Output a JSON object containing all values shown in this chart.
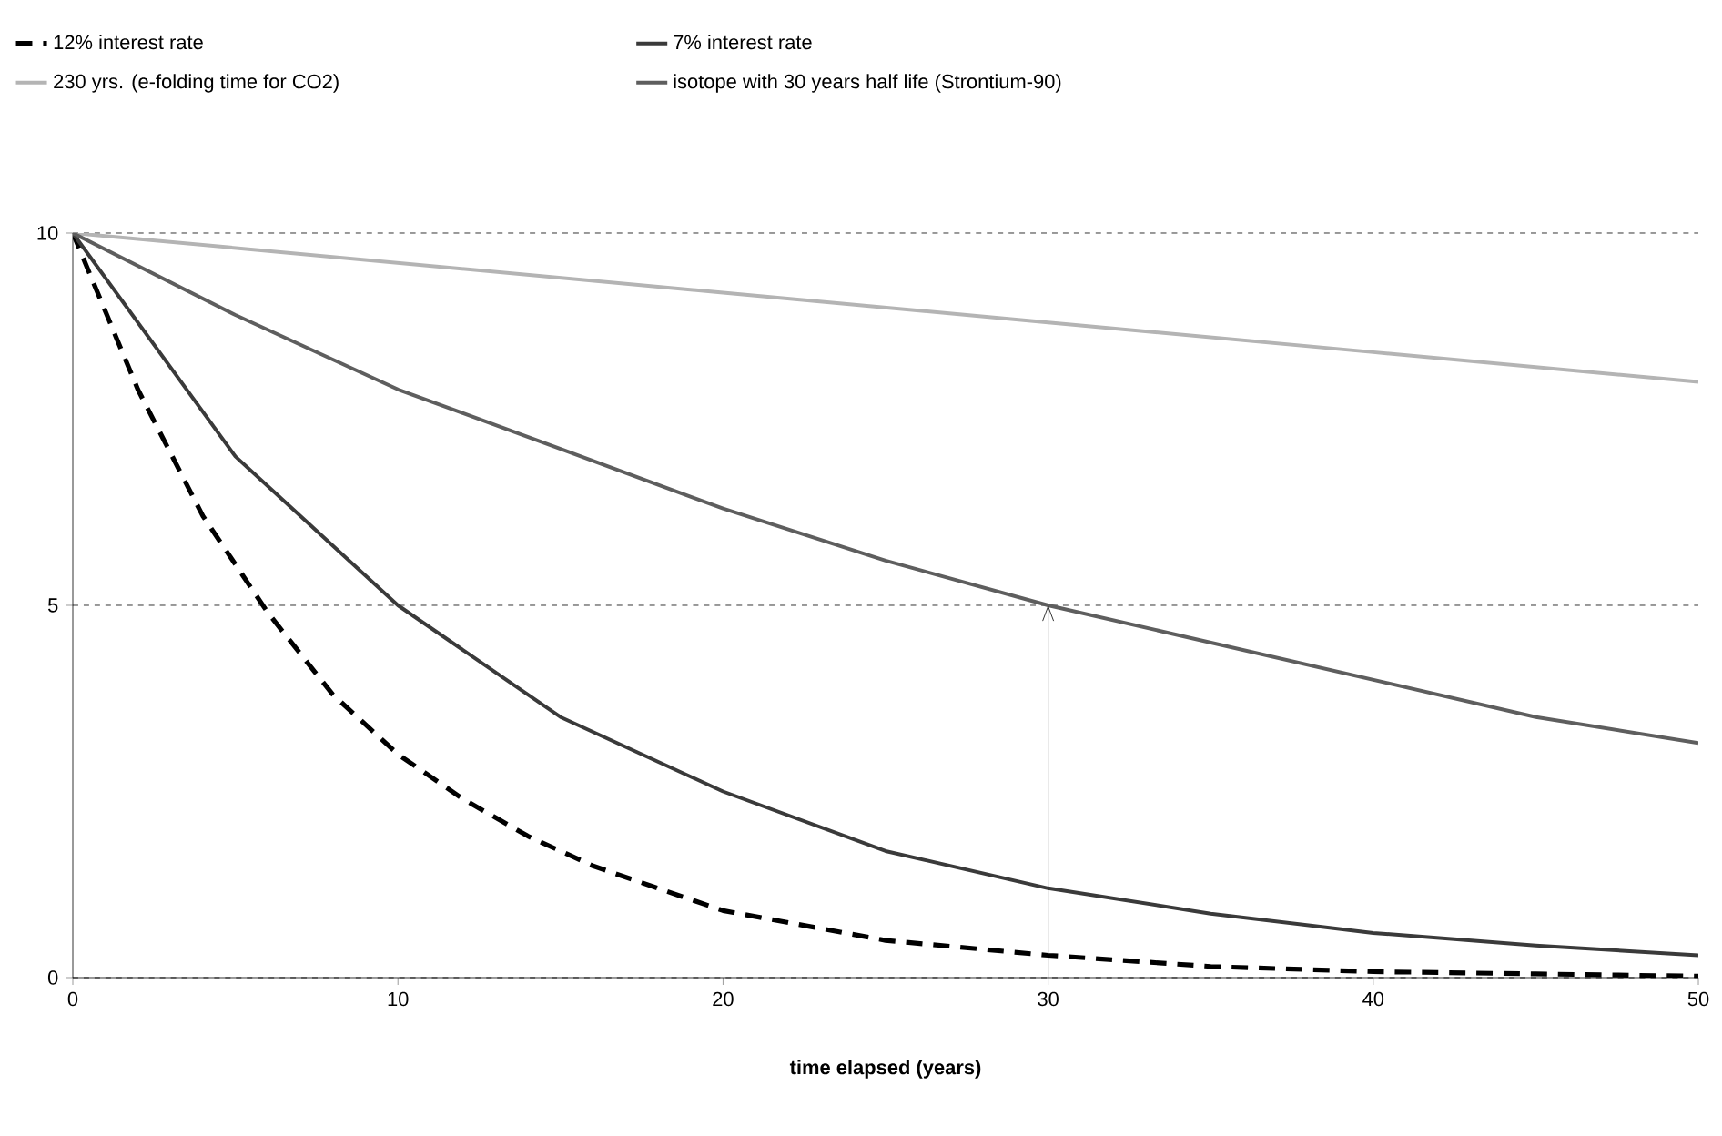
{
  "chart_data": {
    "type": "line",
    "xlabel": "time elapsed (years)",
    "xlim": [
      0,
      50
    ],
    "ylim": [
      0,
      10
    ],
    "xticks": [
      0,
      10,
      20,
      30,
      40,
      50
    ],
    "yticks": [
      0,
      5,
      10
    ],
    "grid": "y",
    "legend": "top",
    "marker": "none",
    "series": [
      {
        "name": "12% interest rate",
        "color": "#000000",
        "line_style": "dashed",
        "x": [
          0,
          2,
          4,
          6,
          8,
          10,
          12,
          14,
          16,
          18,
          20,
          25,
          30,
          35,
          40,
          45,
          50
        ],
        "values": [
          10,
          7.9,
          6.2,
          4.9,
          3.8,
          3.0,
          2.4,
          1.9,
          1.5,
          1.2,
          0.9,
          0.5,
          0.3,
          0.15,
          0.08,
          0.05,
          0.02
        ]
      },
      {
        "name": "7% interest rate",
        "color": "#3a3a3a",
        "line_style": "solid",
        "x": [
          0,
          5,
          10,
          15,
          20,
          25,
          30,
          35,
          40,
          45,
          50
        ],
        "values": [
          10,
          7.0,
          5.0,
          3.5,
          2.5,
          1.7,
          1.2,
          0.86,
          0.6,
          0.43,
          0.3
        ]
      },
      {
        "name": "230 yrs. (e-folding time for CO2)",
        "color": "#b4b4b4",
        "line_style": "solid",
        "x": [
          0,
          10,
          20,
          30,
          40,
          50
        ],
        "values": [
          10,
          9.6,
          9.2,
          8.8,
          8.4,
          8.0
        ]
      },
      {
        "name": "isotope with 30 years half life (Strontium-90)",
        "color": "#5e5e5e",
        "line_style": "solid",
        "x": [
          0,
          5,
          10,
          15,
          20,
          25,
          30,
          35,
          40,
          45,
          50
        ],
        "values": [
          10,
          8.9,
          7.9,
          7.1,
          6.3,
          5.6,
          5.0,
          4.5,
          4.0,
          3.5,
          3.15
        ]
      }
    ]
  }
}
